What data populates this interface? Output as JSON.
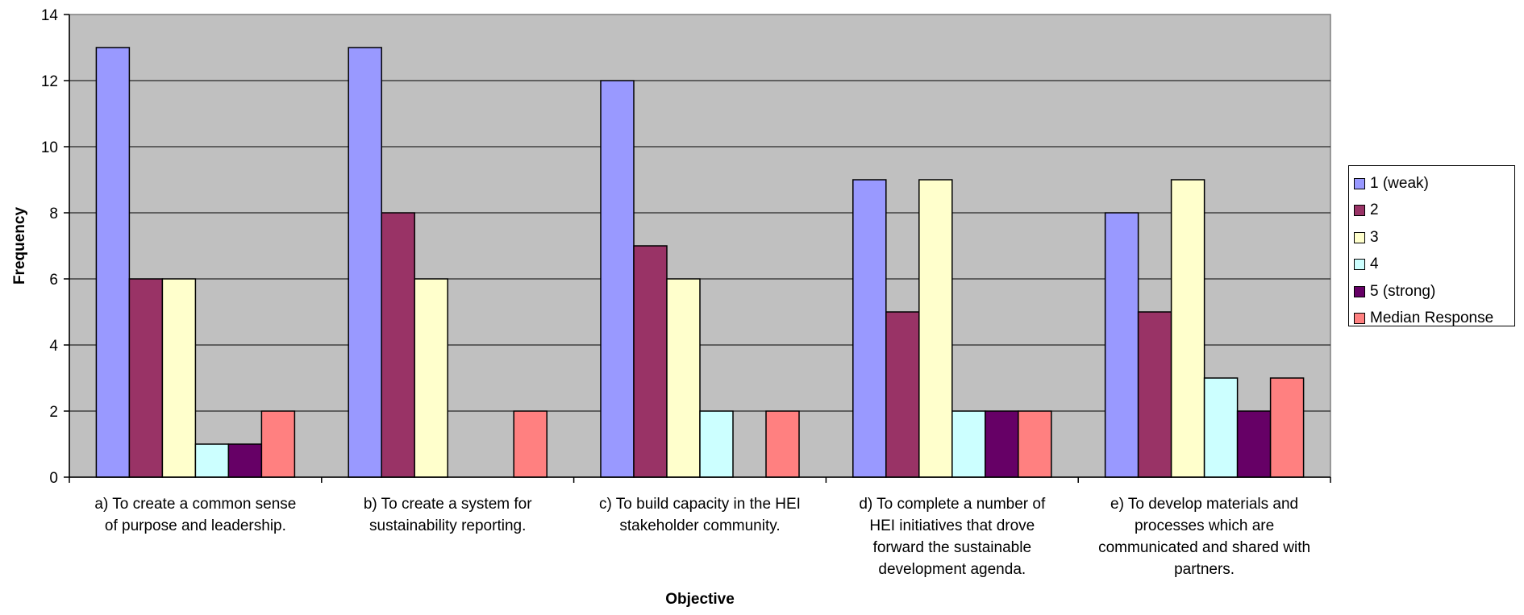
{
  "chart_data": {
    "type": "bar",
    "title": "",
    "xlabel": "Objective",
    "ylabel": "Frequency",
    "ylim": [
      0,
      14
    ],
    "yticks": [
      "0",
      "2",
      "4",
      "6",
      "8",
      "10",
      "12",
      "14"
    ],
    "grid": true,
    "legend_position": "right",
    "categories": [
      [
        "a) To create a common sense",
        "of purpose and leadership."
      ],
      [
        "b) To create a system for",
        "sustainability reporting."
      ],
      [
        "c) To build capacity in the HEI",
        "stakeholder community."
      ],
      [
        "d) To complete a number of",
        "HEI initiatives that drove",
        "forward the sustainable",
        "development agenda."
      ],
      [
        "e) To develop materials and",
        "processes which are",
        "communicated and shared with",
        "partners."
      ]
    ],
    "series": [
      {
        "name": "1 (weak)",
        "color": "#9999FF",
        "values": [
          13,
          13,
          12,
          9,
          8
        ]
      },
      {
        "name": "2",
        "color": "#993366",
        "values": [
          6,
          8,
          7,
          5,
          5
        ]
      },
      {
        "name": "3",
        "color": "#FFFFCC",
        "values": [
          6,
          6,
          6,
          9,
          9
        ]
      },
      {
        "name": "4",
        "color": "#CCFFFF",
        "values": [
          1,
          0,
          2,
          2,
          3
        ]
      },
      {
        "name": "5 (strong)",
        "color": "#660066",
        "values": [
          1,
          0,
          0,
          2,
          2
        ]
      },
      {
        "name": "Median Response",
        "color": "#FF8080",
        "values": [
          2,
          2,
          2,
          2,
          3
        ]
      }
    ],
    "plot_background": "#C0C0C0"
  }
}
